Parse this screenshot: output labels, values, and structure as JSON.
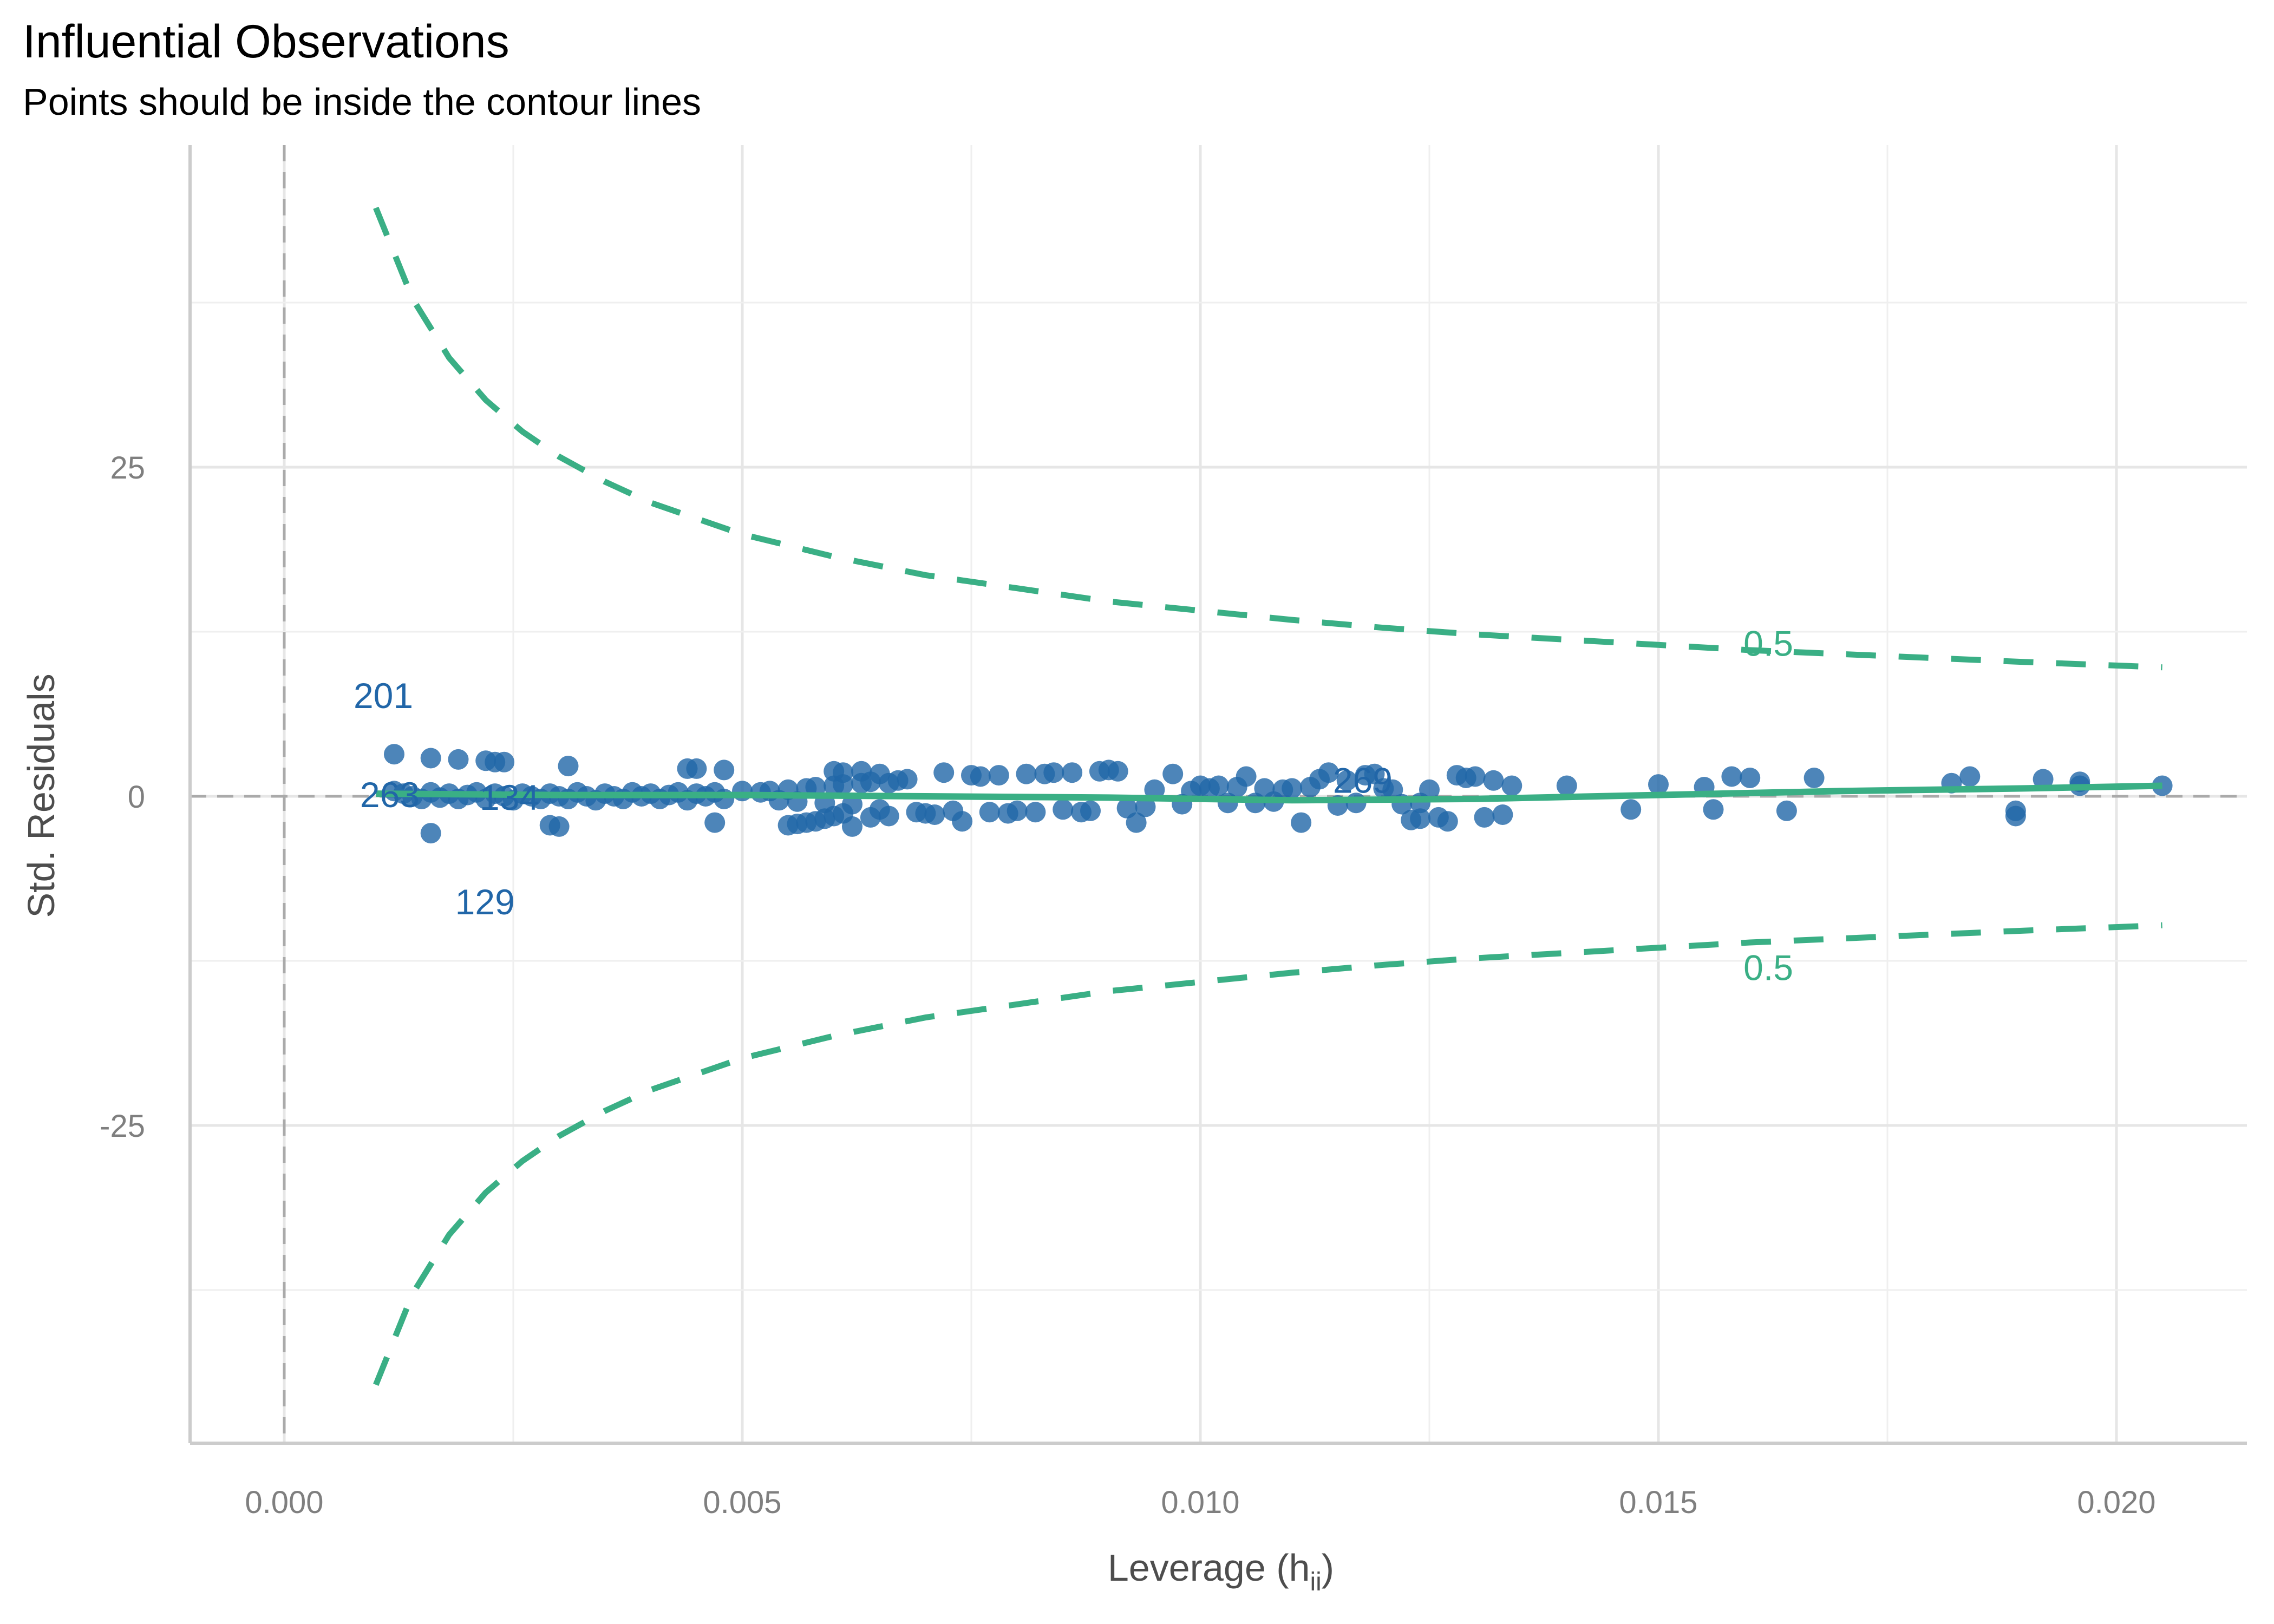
{
  "header": {
    "title": "Influential Observations",
    "subtitle": "Points should be inside the contour lines"
  },
  "colors": {
    "points": "#2166a8",
    "contour": "#3aaf85",
    "smooth": "#3aaf85",
    "reference": "#aaaaaa",
    "grid_major": "#e6e6e6",
    "grid_minor": "#efefef",
    "axis": "#cccccc"
  },
  "chart_data": {
    "type": "scatter",
    "title": "Influential Observations",
    "subtitle": "Points should be inside the contour lines",
    "xlabel": "Leverage (h",
    "xlabel_subscript": "ii",
    "xlabel_close": ")",
    "ylabel": "Std. Residuals",
    "xlim": [
      -0.001,
      0.0213
    ],
    "ylim": [
      -48,
      50
    ],
    "x_ticks": [
      0.0,
      0.005,
      0.01,
      0.015,
      0.02
    ],
    "x_tick_labels": [
      "0.000",
      "0.005",
      "0.010",
      "0.015",
      "0.020"
    ],
    "y_ticks": [
      -25,
      0,
      25
    ],
    "y_tick_labels": [
      "-25",
      "0",
      "25"
    ],
    "grid": true,
    "reference_lines": {
      "x": 0,
      "y": 0
    },
    "points": [
      [
        0.0012,
        3.2
      ],
      [
        0.0016,
        2.9
      ],
      [
        0.0019,
        2.8
      ],
      [
        0.0022,
        2.7
      ],
      [
        0.0023,
        2.6
      ],
      [
        0.0024,
        2.6
      ],
      [
        0.0031,
        2.3
      ],
      [
        0.0012,
        0.4
      ],
      [
        0.0013,
        0.2
      ],
      [
        0.0014,
        0.0
      ],
      [
        0.0015,
        -0.2
      ],
      [
        0.0016,
        0.3
      ],
      [
        0.0017,
        -0.1
      ],
      [
        0.0018,
        0.2
      ],
      [
        0.0019,
        -0.2
      ],
      [
        0.002,
        0.1
      ],
      [
        0.0021,
        0.3
      ],
      [
        0.0022,
        -0.2
      ],
      [
        0.0023,
        0.2
      ],
      [
        0.0024,
        0.0
      ],
      [
        0.0025,
        -0.3
      ],
      [
        0.0026,
        0.2
      ],
      [
        0.0027,
        0.0
      ],
      [
        0.0028,
        -0.2
      ],
      [
        0.0029,
        0.2
      ],
      [
        0.003,
        0.0
      ],
      [
        0.0031,
        -0.2
      ],
      [
        0.0032,
        0.3
      ],
      [
        0.0033,
        0.0
      ],
      [
        0.0034,
        -0.3
      ],
      [
        0.0035,
        0.2
      ],
      [
        0.0036,
        0.0
      ],
      [
        0.0037,
        -0.2
      ],
      [
        0.0038,
        0.3
      ],
      [
        0.0039,
        0.0
      ],
      [
        0.004,
        0.2
      ],
      [
        0.0041,
        -0.2
      ],
      [
        0.0042,
        0.1
      ],
      [
        0.0043,
        0.3
      ],
      [
        0.0044,
        -0.3
      ],
      [
        0.0045,
        0.2
      ],
      [
        0.0046,
        0.0
      ],
      [
        0.0047,
        0.3
      ],
      [
        0.0048,
        -0.2
      ],
      [
        0.0016,
        -2.8
      ],
      [
        0.0029,
        -2.2
      ],
      [
        0.003,
        -2.3
      ],
      [
        0.0044,
        2.1
      ],
      [
        0.0045,
        2.1
      ],
      [
        0.0047,
        -2.0
      ],
      [
        0.0048,
        2.0
      ],
      [
        0.005,
        0.4
      ],
      [
        0.0052,
        0.3
      ],
      [
        0.0053,
        0.4
      ],
      [
        0.0054,
        -0.3
      ],
      [
        0.0055,
        0.5
      ],
      [
        0.0056,
        -0.4
      ],
      [
        0.0057,
        0.6
      ],
      [
        0.0058,
        0.7
      ],
      [
        0.0059,
        -0.5
      ],
      [
        0.006,
        0.8
      ],
      [
        0.0061,
        0.9
      ],
      [
        0.0062,
        -0.6
      ],
      [
        0.0063,
        1.0
      ],
      [
        0.0064,
        1.1
      ],
      [
        0.0065,
        -1.0
      ],
      [
        0.0066,
        1.0
      ],
      [
        0.0055,
        -2.2
      ],
      [
        0.0056,
        -2.1
      ],
      [
        0.0057,
        -2.0
      ],
      [
        0.0058,
        -1.9
      ],
      [
        0.0059,
        -1.7
      ],
      [
        0.006,
        -1.5
      ],
      [
        0.0061,
        -1.3
      ],
      [
        0.006,
        1.9
      ],
      [
        0.0061,
        1.8
      ],
      [
        0.0063,
        1.9
      ],
      [
        0.0065,
        1.7
      ],
      [
        0.0062,
        -2.3
      ],
      [
        0.0064,
        -1.6
      ],
      [
        0.0066,
        -1.5
      ],
      [
        0.0067,
        1.2
      ],
      [
        0.0068,
        1.3
      ],
      [
        0.0069,
        -1.2
      ],
      [
        0.007,
        -1.3
      ],
      [
        0.0071,
        -1.4
      ],
      [
        0.0072,
        1.8
      ],
      [
        0.0073,
        -1.1
      ],
      [
        0.0075,
        1.6
      ],
      [
        0.0076,
        1.5
      ],
      [
        0.0077,
        -1.2
      ],
      [
        0.0078,
        1.6
      ],
      [
        0.0079,
        -1.3
      ],
      [
        0.008,
        -1.1
      ],
      [
        0.0081,
        1.7
      ],
      [
        0.0082,
        -1.2
      ],
      [
        0.0083,
        1.7
      ],
      [
        0.0084,
        1.8
      ],
      [
        0.0085,
        -1.0
      ],
      [
        0.0086,
        1.8
      ],
      [
        0.0087,
        -1.2
      ],
      [
        0.0088,
        -1.1
      ],
      [
        0.0089,
        1.9
      ],
      [
        0.009,
        2.0
      ],
      [
        0.0091,
        1.9
      ],
      [
        0.0092,
        -0.9
      ],
      [
        0.0093,
        -2.0
      ],
      [
        0.0094,
        -0.8
      ],
      [
        0.0074,
        -1.9
      ],
      [
        0.0095,
        0.5
      ],
      [
        0.0097,
        1.7
      ],
      [
        0.0098,
        -0.6
      ],
      [
        0.0099,
        0.4
      ],
      [
        0.01,
        0.8
      ],
      [
        0.0101,
        0.6
      ],
      [
        0.0102,
        0.8
      ],
      [
        0.0103,
        -0.5
      ],
      [
        0.0104,
        0.7
      ],
      [
        0.0105,
        1.5
      ],
      [
        0.0106,
        -0.5
      ],
      [
        0.0107,
        0.6
      ],
      [
        0.0108,
        -0.4
      ],
      [
        0.0109,
        0.5
      ],
      [
        0.011,
        0.6
      ],
      [
        0.0111,
        -2.0
      ],
      [
        0.0112,
        0.7
      ],
      [
        0.0113,
        1.3
      ],
      [
        0.0114,
        1.8
      ],
      [
        0.0115,
        -0.7
      ],
      [
        0.0116,
        1.2
      ],
      [
        0.0117,
        -0.5
      ],
      [
        0.0118,
        1.6
      ],
      [
        0.0119,
        1.7
      ],
      [
        0.012,
        0.6
      ],
      [
        0.0121,
        0.5
      ],
      [
        0.0122,
        -0.6
      ],
      [
        0.0123,
        -1.8
      ],
      [
        0.0124,
        -0.5
      ],
      [
        0.0125,
        0.5
      ],
      [
        0.0126,
        -1.6
      ],
      [
        0.0127,
        -1.9
      ],
      [
        0.0128,
        1.6
      ],
      [
        0.0129,
        1.4
      ],
      [
        0.013,
        1.5
      ],
      [
        0.0131,
        -1.6
      ],
      [
        0.0132,
        1.2
      ],
      [
        0.0133,
        -1.4
      ],
      [
        0.0134,
        0.8
      ],
      [
        0.0124,
        -1.7
      ],
      [
        0.014,
        0.8
      ],
      [
        0.0147,
        -1.0
      ],
      [
        0.015,
        0.9
      ],
      [
        0.0155,
        0.7
      ],
      [
        0.0156,
        -1.0
      ],
      [
        0.0158,
        1.5
      ],
      [
        0.016,
        1.4
      ],
      [
        0.0164,
        -1.1
      ],
      [
        0.0167,
        1.4
      ],
      [
        0.0182,
        1.0
      ],
      [
        0.0184,
        1.5
      ],
      [
        0.0189,
        -1.5
      ],
      [
        0.0189,
        -1.1
      ],
      [
        0.0192,
        1.3
      ],
      [
        0.0196,
        0.8
      ],
      [
        0.0196,
        1.1
      ],
      [
        0.0205,
        0.8
      ]
    ],
    "labeled_points": [
      {
        "label": "201",
        "x": 0.0012,
        "y": 3.2
      },
      {
        "label": "263",
        "x": 0.0013,
        "y": 0.2
      },
      {
        "label": "134",
        "x": 0.0024,
        "y": 0.0
      },
      {
        "label": "129",
        "x": 0.0016,
        "y": -2.8
      },
      {
        "label": "269",
        "x": 0.0113,
        "y": 1.3
      }
    ],
    "smooth_line": [
      [
        0.001,
        0.2
      ],
      [
        0.003,
        0.1
      ],
      [
        0.005,
        0.1
      ],
      [
        0.007,
        0.0
      ],
      [
        0.009,
        -0.1
      ],
      [
        0.011,
        -0.3
      ],
      [
        0.013,
        -0.2
      ],
      [
        0.015,
        0.1
      ],
      [
        0.017,
        0.4
      ],
      [
        0.019,
        0.6
      ],
      [
        0.0205,
        0.8
      ]
    ],
    "contours": [
      {
        "label": "0.5",
        "side": "upper",
        "points": [
          [
            0.001,
            44.7
          ],
          [
            0.0014,
            37.8
          ],
          [
            0.0018,
            33.3
          ],
          [
            0.0022,
            30.1
          ],
          [
            0.0026,
            27.7
          ],
          [
            0.003,
            25.8
          ],
          [
            0.0035,
            23.9
          ],
          [
            0.004,
            22.3
          ],
          [
            0.005,
            19.9
          ],
          [
            0.006,
            18.2
          ],
          [
            0.007,
            16.8
          ],
          [
            0.008,
            15.8
          ],
          [
            0.009,
            14.8
          ],
          [
            0.01,
            14.1
          ],
          [
            0.011,
            13.4
          ],
          [
            0.012,
            12.8
          ],
          [
            0.013,
            12.3
          ],
          [
            0.014,
            11.9
          ],
          [
            0.015,
            11.5
          ],
          [
            0.016,
            11.1
          ],
          [
            0.017,
            10.8
          ],
          [
            0.018,
            10.5
          ],
          [
            0.019,
            10.2
          ],
          [
            0.0205,
            9.8
          ]
        ]
      },
      {
        "label": "0.5",
        "side": "lower",
        "points": [
          [
            0.001,
            -44.7
          ],
          [
            0.0014,
            -37.8
          ],
          [
            0.0018,
            -33.3
          ],
          [
            0.0022,
            -30.1
          ],
          [
            0.0026,
            -27.7
          ],
          [
            0.003,
            -25.8
          ],
          [
            0.0035,
            -23.9
          ],
          [
            0.004,
            -22.3
          ],
          [
            0.005,
            -19.9
          ],
          [
            0.006,
            -18.2
          ],
          [
            0.007,
            -16.8
          ],
          [
            0.008,
            -15.8
          ],
          [
            0.009,
            -14.8
          ],
          [
            0.01,
            -14.1
          ],
          [
            0.011,
            -13.4
          ],
          [
            0.012,
            -12.8
          ],
          [
            0.013,
            -12.3
          ],
          [
            0.014,
            -11.9
          ],
          [
            0.015,
            -11.5
          ],
          [
            0.016,
            -11.1
          ],
          [
            0.017,
            -10.8
          ],
          [
            0.018,
            -10.5
          ],
          [
            0.019,
            -10.2
          ],
          [
            0.0205,
            -9.8
          ]
        ]
      }
    ],
    "contour_label_positions": [
      {
        "label": "0.5",
        "x": 0.0162,
        "y": 11.5
      },
      {
        "label": "0.5",
        "x": 0.0162,
        "y": -11.5
      }
    ]
  }
}
